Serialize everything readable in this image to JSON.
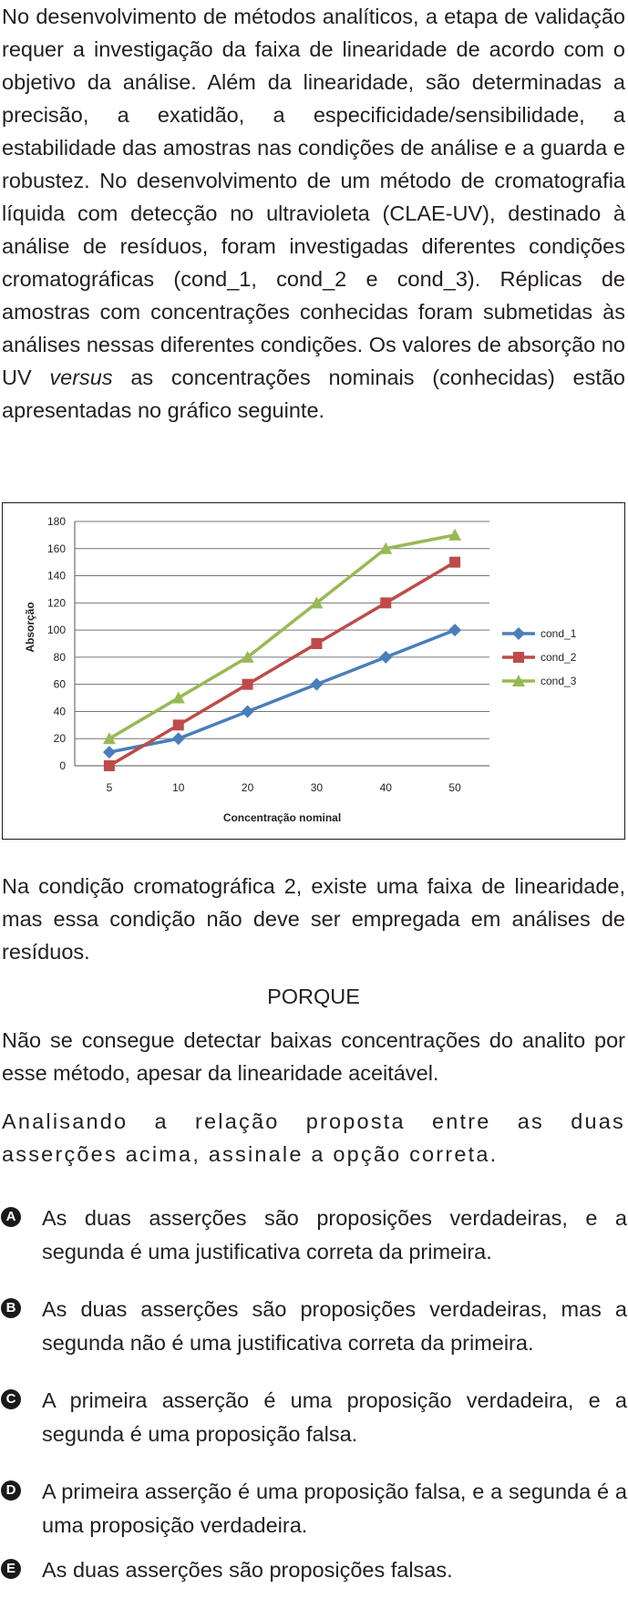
{
  "intro": {
    "text_before_italic": "No desenvolvimento de métodos analíticos, a etapa de validação requer a investigação da faixa de linearidade de acordo com o objetivo da análise. Além da linearidade, são determinadas a precisão, a exatidão, a especificidade/sensibilidade, a estabilidade das amostras nas condições de análise e a guarda e robustez. No desenvolvimento de um método de cromatografia líquida com detecção no ultravioleta (CLAE-UV), destinado à análise de resíduos, foram investigadas diferentes condições cromatográficas (cond_1, cond_2 e cond_3). Réplicas de amostras com concentrações conhecidas foram submetidas às análises nessas diferentes condições. Os valores de absorção no UV",
    "italic_word": "versus",
    "text_after_italic": "as concentrações nominais (conhecidas) estão apresentadas no gráfico seguinte."
  },
  "chart_data": {
    "type": "line",
    "categories": [
      "5",
      "10",
      "20",
      "30",
      "40",
      "50"
    ],
    "series": [
      {
        "name": "cond_1",
        "values": [
          10,
          20,
          40,
          60,
          80,
          100
        ],
        "color": "#4a7ebb",
        "marker": "diamond"
      },
      {
        "name": "cond_2",
        "values": [
          0,
          30,
          60,
          90,
          120,
          150
        ],
        "color": "#be4b48",
        "marker": "square"
      },
      {
        "name": "cond_3",
        "values": [
          20,
          50,
          80,
          120,
          160,
          170
        ],
        "color": "#98b954",
        "marker": "triangle"
      }
    ],
    "xlabel": "Concentração nominal",
    "ylabel": "Absorção",
    "ylim": [
      0,
      180
    ],
    "yticks": [
      0,
      20,
      40,
      60,
      80,
      100,
      120,
      140,
      160,
      180
    ],
    "grid": true,
    "legend_position": "right"
  },
  "assertion_1": "Na condição cromatográfica 2, existe uma faixa de linearidade, mas essa condição não deve ser empregada em análises de resíduos.",
  "connector": "PORQUE",
  "assertion_2": "Não se consegue detectar baixas concentrações do analito por esse método, apesar da linearidade aceitável.",
  "question": "Analisando a relação proposta entre as duas asserções acima, assinale a opção correta.",
  "options": [
    {
      "letter": "A",
      "text": "As duas asserções são proposições verdadeiras, e a segunda é uma justificativa correta da primeira."
    },
    {
      "letter": "B",
      "text": "As duas asserções são proposições verdadeiras, mas a segunda não é uma justificativa correta da primeira."
    },
    {
      "letter": "C",
      "text": "A primeira asserção é uma proposição verdadeira, e a segunda é uma proposição falsa."
    },
    {
      "letter": "D",
      "text": "A primeira asserção é uma proposição falsa, e a segunda é a uma proposição verdadeira."
    },
    {
      "letter": "E",
      "text": "As duas asserções são proposições falsas."
    }
  ]
}
